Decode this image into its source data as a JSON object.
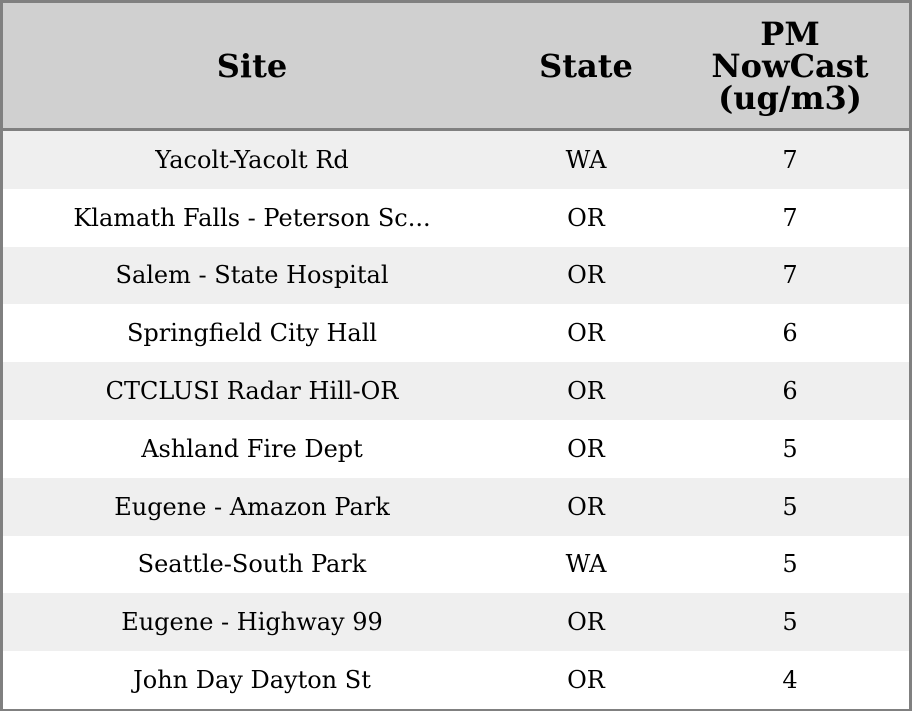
{
  "table": {
    "headers": [
      "Site",
      "State",
      "PM NowCast (ug/m3)"
    ],
    "header_lines": {
      "pm": [
        "PM",
        "NowCast",
        "(ug/m3)"
      ]
    },
    "rows": [
      {
        "site": "Yacolt-Yacolt Rd",
        "state": "WA",
        "pm": "7"
      },
      {
        "site": "Klamath Falls - Peterson Sc...",
        "state": "OR",
        "pm": "7"
      },
      {
        "site": "Salem - State Hospital",
        "state": "OR",
        "pm": "7"
      },
      {
        "site": "Springfield City Hall",
        "state": "OR",
        "pm": "6"
      },
      {
        "site": "CTCLUSI Radar Hill-OR",
        "state": "OR",
        "pm": "6"
      },
      {
        "site": "Ashland Fire Dept",
        "state": "OR",
        "pm": "5"
      },
      {
        "site": "Eugene - Amazon Park",
        "state": "OR",
        "pm": "5"
      },
      {
        "site": "Seattle-South Park",
        "state": "WA",
        "pm": "5"
      },
      {
        "site": "Eugene - Highway 99",
        "state": "OR",
        "pm": "5"
      },
      {
        "site": "John Day Dayton St",
        "state": "OR",
        "pm": "4"
      }
    ]
  },
  "colors": {
    "header_bg": "#d0d0d0",
    "stripe": "#efefef",
    "border": "#808080"
  }
}
